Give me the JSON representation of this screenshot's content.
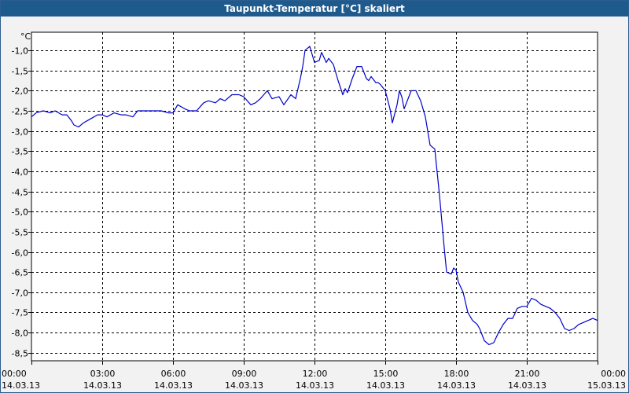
{
  "window": {
    "title": "Taupunkt-Temperatur [°C] skaliert"
  },
  "chart_data": {
    "type": "line",
    "title": "",
    "ylabel": "°C",
    "xlabel": "",
    "ylim": [
      -8.7,
      -0.55
    ],
    "xlim": [
      0,
      24
    ],
    "grid": true,
    "line_color": "#0000cc",
    "y_ticks": [
      -1.0,
      -1.5,
      -2.0,
      -2.5,
      -3.0,
      -3.5,
      -4.0,
      -4.5,
      -5.0,
      -5.5,
      -6.0,
      -6.5,
      -7.0,
      -7.5,
      -8.0,
      -8.5
    ],
    "y_tick_labels": [
      "-1,0",
      "-1,5",
      "-2,0",
      "-2,5",
      "-3,0",
      "-3,5",
      "-4,0",
      "-4,5",
      "-5,0",
      "-5,5",
      "-6,0",
      "-6,5",
      "-7,0",
      "-7,5",
      "-8,0",
      "-8,5"
    ],
    "x_ticks": [
      0,
      3,
      6,
      9,
      12,
      15,
      18,
      21,
      24
    ],
    "x_tick_labels": [
      {
        "time": "00:00",
        "date": "14.03.13"
      },
      {
        "time": "03:00",
        "date": "14.03.13"
      },
      {
        "time": "06:00",
        "date": "14.03.13"
      },
      {
        "time": "09:00",
        "date": "14.03.13"
      },
      {
        "time": "12:00",
        "date": "14.03.13"
      },
      {
        "time": "15:00",
        "date": "14.03.13"
      },
      {
        "time": "18:00",
        "date": "14.03.13"
      },
      {
        "time": "21:00",
        "date": "14.03.13"
      },
      {
        "time": "00:00",
        "date": "15.03.13"
      }
    ],
    "series": [
      {
        "x": [
          0.0,
          0.2,
          0.5,
          0.8,
          1.0,
          1.3,
          1.5,
          1.7,
          1.8,
          2.0,
          2.2,
          2.5,
          2.8,
          3.0,
          3.2,
          3.5,
          3.8,
          4.0,
          4.3,
          4.5,
          5.0,
          5.5,
          5.8,
          6.0,
          6.2,
          6.5,
          6.7,
          7.0,
          7.3,
          7.5,
          7.8,
          8.0,
          8.2,
          8.5,
          8.8,
          9.0,
          9.3,
          9.5,
          9.7,
          10.0,
          10.2,
          10.5,
          10.7,
          11.0,
          11.2,
          11.4,
          11.5,
          11.6,
          11.8,
          12.0,
          12.2,
          12.3,
          12.5,
          12.6,
          12.8,
          13.0,
          13.2,
          13.3,
          13.4,
          13.6,
          13.8,
          14.0,
          14.2,
          14.3,
          14.4,
          14.6,
          14.7,
          14.8,
          15.0,
          15.2,
          15.3,
          15.5,
          15.6,
          15.7,
          15.8,
          15.9,
          16.0,
          16.1,
          16.3,
          16.5,
          16.7,
          16.9,
          17.0,
          17.1,
          17.3,
          17.5,
          17.6,
          17.8,
          17.9,
          18.0,
          18.1,
          18.3,
          18.5,
          18.7,
          18.9,
          19.0,
          19.2,
          19.4,
          19.6,
          19.8,
          20.0,
          20.2,
          20.4,
          20.6,
          20.8,
          21.0,
          21.2,
          21.4,
          21.6,
          21.8,
          22.0,
          22.2,
          22.4,
          22.6,
          22.8,
          23.0,
          23.2,
          23.4,
          23.6,
          23.8,
          24.0
        ],
        "y": [
          -2.65,
          -2.55,
          -2.5,
          -2.55,
          -2.5,
          -2.6,
          -2.6,
          -2.75,
          -2.85,
          -2.9,
          -2.8,
          -2.7,
          -2.6,
          -2.6,
          -2.65,
          -2.55,
          -2.6,
          -2.6,
          -2.65,
          -2.5,
          -2.5,
          -2.5,
          -2.55,
          -2.55,
          -2.35,
          -2.45,
          -2.5,
          -2.5,
          -2.3,
          -2.25,
          -2.3,
          -2.2,
          -2.25,
          -2.1,
          -2.1,
          -2.15,
          -2.35,
          -2.3,
          -2.2,
          -2.0,
          -2.2,
          -2.15,
          -2.35,
          -2.1,
          -2.2,
          -1.7,
          -1.4,
          -1.0,
          -0.9,
          -1.3,
          -1.25,
          -1.05,
          -1.3,
          -1.2,
          -1.35,
          -1.75,
          -2.1,
          -1.95,
          -2.05,
          -1.7,
          -1.4,
          -1.4,
          -1.7,
          -1.75,
          -1.65,
          -1.8,
          -1.8,
          -1.85,
          -2.0,
          -2.45,
          -2.8,
          -2.35,
          -2.0,
          -2.15,
          -2.45,
          -2.3,
          -2.15,
          -2.0,
          -2.0,
          -2.25,
          -2.65,
          -3.35,
          -3.4,
          -3.45,
          -4.6,
          -5.9,
          -6.5,
          -6.55,
          -6.4,
          -6.45,
          -6.75,
          -7.0,
          -7.5,
          -7.7,
          -7.8,
          -7.9,
          -8.2,
          -8.3,
          -8.25,
          -8.0,
          -7.8,
          -7.65,
          -7.65,
          -7.4,
          -7.35,
          -7.35,
          -7.15,
          -7.2,
          -7.3,
          -7.35,
          -7.4,
          -7.5,
          -7.65,
          -7.9,
          -7.95,
          -7.9,
          -7.8,
          -7.75,
          -7.7,
          -7.65,
          -7.7
        ]
      }
    ]
  }
}
